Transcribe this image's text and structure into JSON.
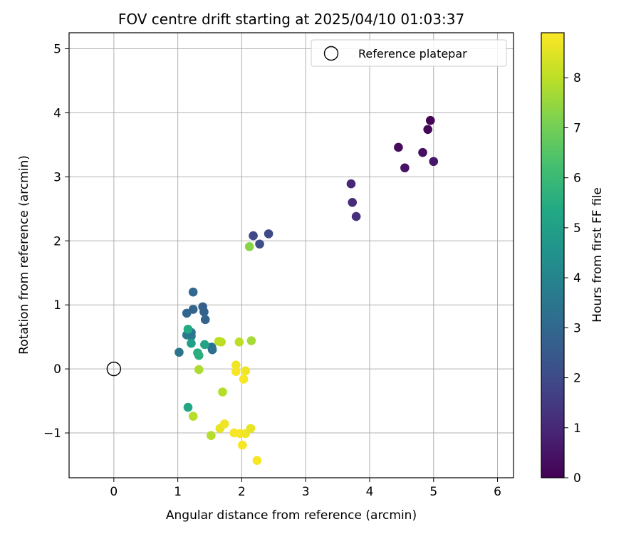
{
  "chart_data": {
    "type": "scatter",
    "title": "FOV centre drift starting at 2025/04/10 01:03:37",
    "xlabel": "Angular distance from reference (arcmin)",
    "ylabel": "Rotation from reference (arcmin)",
    "xlim": [
      -0.7,
      6.25
    ],
    "ylim": [
      -1.7,
      5.25
    ],
    "xticks": [
      "0",
      "1",
      "2",
      "3",
      "4",
      "5",
      "6"
    ],
    "yticks": [
      "−1",
      "0",
      "1",
      "2",
      "3",
      "4",
      "5"
    ],
    "xtick_values": [
      0,
      1,
      2,
      3,
      4,
      5,
      6
    ],
    "ytick_values": [
      -1,
      0,
      1,
      2,
      3,
      4,
      5
    ],
    "grid": true,
    "legend": {
      "placement": "top-right",
      "entries": [
        "Reference platepar"
      ]
    },
    "reference_point": {
      "x": 0,
      "y": 0,
      "label": "Reference platepar"
    },
    "colorbar": {
      "label": "Hours from first FF file",
      "min": 0,
      "max": 8.9,
      "ticks": [
        "0",
        "1",
        "2",
        "3",
        "4",
        "5",
        "6",
        "7",
        "8"
      ],
      "tick_values": [
        0,
        1,
        2,
        3,
        4,
        5,
        6,
        7,
        8
      ],
      "colormap": "viridis"
    },
    "points": [
      {
        "x": 4.95,
        "y": 3.88,
        "c": 0.05
      },
      {
        "x": 4.91,
        "y": 3.74,
        "c": 0.15
      },
      {
        "x": 4.45,
        "y": 3.46,
        "c": 0.25
      },
      {
        "x": 4.83,
        "y": 3.38,
        "c": 0.35
      },
      {
        "x": 4.55,
        "y": 3.14,
        "c": 0.45
      },
      {
        "x": 5.0,
        "y": 3.24,
        "c": 0.55
      },
      {
        "x": 3.71,
        "y": 2.89,
        "c": 1.0
      },
      {
        "x": 3.73,
        "y": 2.6,
        "c": 1.1
      },
      {
        "x": 3.79,
        "y": 2.38,
        "c": 1.2
      },
      {
        "x": 2.18,
        "y": 2.08,
        "c": 1.9
      },
      {
        "x": 2.28,
        "y": 1.95,
        "c": 2.1
      },
      {
        "x": 2.42,
        "y": 2.11,
        "c": 2.0
      },
      {
        "x": 1.24,
        "y": 1.2,
        "c": 3.0
      },
      {
        "x": 1.14,
        "y": 0.87,
        "c": 2.95
      },
      {
        "x": 1.24,
        "y": 0.93,
        "c": 2.9
      },
      {
        "x": 1.39,
        "y": 0.97,
        "c": 2.7
      },
      {
        "x": 1.41,
        "y": 0.89,
        "c": 2.8
      },
      {
        "x": 1.43,
        "y": 0.77,
        "c": 2.85
      },
      {
        "x": 1.14,
        "y": 0.53,
        "c": 3.6
      },
      {
        "x": 1.21,
        "y": 0.51,
        "c": 3.7
      },
      {
        "x": 1.21,
        "y": 0.57,
        "c": 3.5
      },
      {
        "x": 1.02,
        "y": 0.26,
        "c": 3.4
      },
      {
        "x": 1.54,
        "y": 0.3,
        "c": 3.2
      },
      {
        "x": 1.53,
        "y": 0.34,
        "c": 3.3
      },
      {
        "x": 1.16,
        "y": 0.62,
        "c": 5.4
      },
      {
        "x": 1.21,
        "y": 0.4,
        "c": 5.0
      },
      {
        "x": 1.31,
        "y": 0.25,
        "c": 5.5
      },
      {
        "x": 1.33,
        "y": 0.21,
        "c": 5.6
      },
      {
        "x": 1.42,
        "y": 0.38,
        "c": 5.2
      },
      {
        "x": 1.16,
        "y": -0.6,
        "c": 5.3
      },
      {
        "x": 1.33,
        "y": -0.01,
        "c": 7.8
      },
      {
        "x": 1.24,
        "y": -0.74,
        "c": 7.9
      },
      {
        "x": 1.52,
        "y": -1.04,
        "c": 7.9
      },
      {
        "x": 1.64,
        "y": 0.43,
        "c": 8.0
      },
      {
        "x": 1.68,
        "y": 0.42,
        "c": 8.0
      },
      {
        "x": 1.7,
        "y": -0.36,
        "c": 7.9
      },
      {
        "x": 1.96,
        "y": 0.42,
        "c": 8.0
      },
      {
        "x": 2.15,
        "y": 0.44,
        "c": 7.7
      },
      {
        "x": 2.12,
        "y": 1.91,
        "c": 7.3
      },
      {
        "x": 1.91,
        "y": 0.06,
        "c": 8.7
      },
      {
        "x": 1.91,
        "y": -0.04,
        "c": 8.8
      },
      {
        "x": 2.06,
        "y": -0.03,
        "c": 8.7
      },
      {
        "x": 2.03,
        "y": -0.16,
        "c": 8.8
      },
      {
        "x": 1.66,
        "y": -0.93,
        "c": 8.6
      },
      {
        "x": 1.73,
        "y": -0.86,
        "c": 8.7
      },
      {
        "x": 1.88,
        "y": -1.0,
        "c": 8.8
      },
      {
        "x": 1.97,
        "y": -1.01,
        "c": 8.8
      },
      {
        "x": 2.06,
        "y": -1.01,
        "c": 8.7
      },
      {
        "x": 2.14,
        "y": -0.93,
        "c": 8.6
      },
      {
        "x": 2.01,
        "y": -1.19,
        "c": 8.8
      },
      {
        "x": 2.24,
        "y": -1.43,
        "c": 8.8
      }
    ]
  }
}
